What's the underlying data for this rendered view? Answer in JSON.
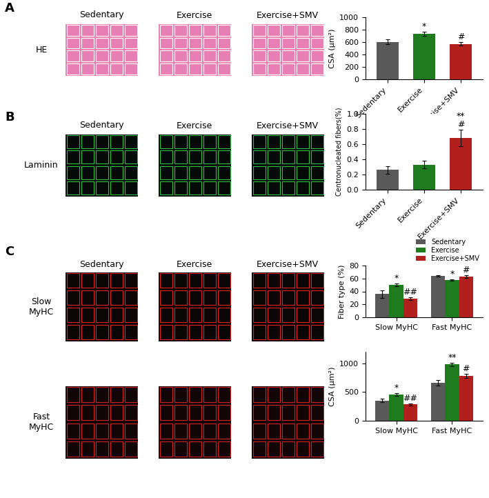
{
  "images": {
    "columns": [
      "Sedentary",
      "Exercise",
      "Exercise+SMV"
    ],
    "panels": [
      {
        "label": "A",
        "rows": [
          "HE"
        ]
      },
      {
        "label": "B",
        "rows": [
          "Laminin"
        ]
      },
      {
        "label": "C",
        "rows": [
          "Slow\nMyHC",
          "Fast\nMyHC"
        ]
      }
    ]
  },
  "chart_data": [
    {
      "type": "bar",
      "ylabel": "CSA (μm²)",
      "categories": [
        "Sedentary",
        "Exercise",
        "Exercise+SMV"
      ],
      "values": [
        605,
        735,
        570
      ],
      "errors": [
        35,
        35,
        30
      ],
      "colors": [
        "#595959",
        "#1e7b1e",
        "#b2201e"
      ],
      "ylim": [
        0,
        1000
      ],
      "yticks": [
        0,
        200,
        400,
        600,
        800,
        1000
      ],
      "annotations": [
        {
          "text": "*",
          "category": "Exercise"
        },
        {
          "text": "#",
          "category": "Exercise+SMV"
        }
      ]
    },
    {
      "type": "bar",
      "ylabel": "Centronucleated fibers(%)",
      "categories": [
        "Sedentary",
        "Exercise",
        "Exercise+SMV"
      ],
      "values": [
        0.26,
        0.33,
        0.68
      ],
      "errors": [
        0.05,
        0.05,
        0.11
      ],
      "colors": [
        "#595959",
        "#1e7b1e",
        "#b2201e"
      ],
      "ylim": [
        0,
        1.0
      ],
      "yticks": [
        {
          "value": 0,
          "label": "0.0"
        },
        {
          "value": 0.2,
          "label": "0.2"
        },
        {
          "value": 0.4,
          "label": "0.4"
        },
        {
          "value": 0.6,
          "label": "0.6"
        },
        {
          "value": 0.8,
          "label": "0.8"
        },
        {
          "value": 1.0,
          "label": "1.0"
        }
      ],
      "annotations": [
        {
          "text": "**\n#",
          "category": "Exercise+SMV"
        }
      ]
    },
    {
      "type": "grouped_bar",
      "ylabel": "Fiber type (%)",
      "categories": [
        "Slow MyHC",
        "Fast MyHC"
      ],
      "series": [
        {
          "name": "Sedentary",
          "color": "#595959",
          "values": [
            36,
            64
          ],
          "errors": [
            6,
            1
          ]
        },
        {
          "name": "Exercise",
          "color": "#1e7b1e",
          "values": [
            50,
            58
          ],
          "errors": [
            2,
            1
          ]
        },
        {
          "name": "Exercise+SMV",
          "color": "#b2201e",
          "values": [
            29,
            63
          ],
          "errors": [
            2,
            2
          ]
        }
      ],
      "ylim": [
        0,
        80
      ],
      "yticks": [
        0,
        20,
        40,
        60,
        80
      ],
      "legend": "lower right",
      "annotations": [
        {
          "text": "*",
          "category": "Slow MyHC",
          "series": "Exercise"
        },
        {
          "text": "##",
          "category": "Slow MyHC",
          "series": "Exercise+SMV"
        },
        {
          "text": "*",
          "category": "Fast MyHC",
          "series": "Exercise"
        },
        {
          "text": "#",
          "category": "Fast MyHC",
          "series": "Exercise+SMV"
        }
      ]
    },
    {
      "type": "grouped_bar",
      "ylabel": "CSA (μm²)",
      "categories": [
        "Slow MyHC",
        "Fast MyHC"
      ],
      "series": [
        {
          "name": "Sedentary",
          "color": "#595959",
          "values": [
            350,
            660
          ],
          "errors": [
            30,
            50
          ]
        },
        {
          "name": "Exercise",
          "color": "#1e7b1e",
          "values": [
            460,
            980
          ],
          "errors": [
            25,
            30
          ]
        },
        {
          "name": "Exercise+SMV",
          "color": "#b2201e",
          "values": [
            285,
            780
          ],
          "errors": [
            20,
            40
          ]
        }
      ],
      "ylim": [
        0,
        1200
      ],
      "yticks": [
        0,
        500,
        1000
      ],
      "annotations": [
        {
          "text": "*",
          "category": "Slow MyHC",
          "series": "Exercise"
        },
        {
          "text": "##",
          "category": "Slow MyHC",
          "series": "Exercise+SMV"
        },
        {
          "text": "**",
          "category": "Fast MyHC",
          "series": "Exercise"
        },
        {
          "text": "#",
          "category": "Fast MyHC",
          "series": "Exercise+SMV"
        }
      ]
    }
  ]
}
